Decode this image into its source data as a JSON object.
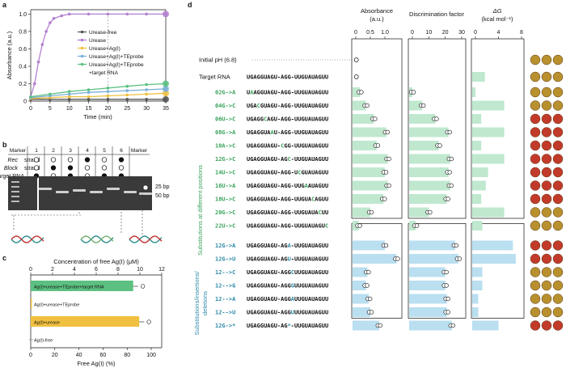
{
  "panels": {
    "a": "a",
    "b": "b",
    "c": "c",
    "d": "d"
  },
  "panel_a": {
    "chart_data": {
      "type": "line",
      "ylabel": "Absorbance (a.u.)",
      "xlabel": "Time (min)",
      "xlim": [
        0,
        35
      ],
      "ylim": [
        0,
        1.0
      ],
      "xticks": [
        "0",
        "5",
        "10",
        "15",
        "20",
        "25",
        "30",
        "35"
      ],
      "yticks": [
        "0",
        "0.2",
        "0.4",
        "0.6",
        "0.8",
        "1.0"
      ],
      "series": [
        {
          "name": "Urease-free",
          "color": "#555555",
          "x": [
            0,
            5,
            10,
            15,
            20,
            25,
            30,
            35
          ],
          "y": [
            0.02,
            0.02,
            0.02,
            0.02,
            0.02,
            0.02,
            0.02,
            0.02
          ]
        },
        {
          "name": "Urease",
          "color": "#b37fd0",
          "x": [
            0,
            1,
            2,
            3,
            4,
            5,
            6,
            8,
            10,
            15,
            20,
            25,
            30,
            35
          ],
          "y": [
            0.05,
            0.2,
            0.45,
            0.65,
            0.8,
            0.9,
            0.95,
            0.98,
            1.0,
            1.0,
            1.0,
            1.0,
            1.0,
            1.0
          ]
        },
        {
          "name": "Urease+Ag(I)",
          "color": "#f0c040",
          "x": [
            0,
            5,
            10,
            15,
            20,
            25,
            30,
            35
          ],
          "y": [
            0.03,
            0.04,
            0.05,
            0.05,
            0.06,
            0.07,
            0.08,
            0.09
          ]
        },
        {
          "name": "Urease+Ag(I)+TEprobe",
          "color": "#7ab0d8",
          "x": [
            0,
            5,
            10,
            15,
            20,
            25,
            30,
            35
          ],
          "y": [
            0.04,
            0.06,
            0.08,
            0.1,
            0.11,
            0.12,
            0.13,
            0.14
          ]
        },
        {
          "name": "Urease+Ag(I)+TEprobe\n+target RNA",
          "color": "#5cc080",
          "x": [
            0,
            5,
            10,
            15,
            20,
            25,
            30,
            35
          ],
          "y": [
            0.05,
            0.08,
            0.11,
            0.13,
            0.15,
            0.17,
            0.19,
            0.2
          ]
        }
      ],
      "legend": [
        "Urease-free",
        "Urease",
        "Urease+Ag(I)",
        "Urease+Ag(I)+TEprobe",
        "Urease+Ag(I)+TEprobe",
        "+target RNA"
      ]
    }
  },
  "panel_b": {
    "rows": [
      "Rec strand",
      "Block strand",
      "Target RNA"
    ],
    "rows_italic": [
      "Rec",
      "Block",
      ""
    ],
    "rows_rest": [
      " strand",
      " strand",
      "Target RNA"
    ],
    "cols": [
      "Marker",
      "1",
      "2",
      "3",
      "4",
      "5",
      "6",
      "Marker"
    ],
    "cells": [
      [
        "o",
        "o",
        "o",
        "f",
        "o",
        "f"
      ],
      [
        "o",
        "f",
        "f",
        "o",
        "o",
        "o"
      ],
      [
        "f",
        "o",
        "f",
        "o",
        "f",
        "f"
      ]
    ],
    "band_labels": [
      "25 bp",
      "50 bp"
    ]
  },
  "panel_c": {
    "chart_data": {
      "type": "bar",
      "top_axis_label": "Concentration of free Ag(I) (μM)",
      "top_ticks": [
        "0",
        "2",
        "4",
        "6",
        "8",
        "10",
        "12"
      ],
      "bottom_axis_label": "Free Ag(I) (%)",
      "bottom_ticks": [
        "0",
        "20",
        "40",
        "60",
        "80",
        "100"
      ],
      "categories": [
        "Ag(I)+urease+TEprobe+target RNA",
        "Ag(I)+urease+TEprobe",
        "Ag(I)+urease",
        "Ag(I)-free"
      ],
      "values": [
        85,
        1,
        90,
        0
      ],
      "colors": [
        "#5cc080",
        "#f0c040",
        "#f0c040",
        "#999999"
      ]
    }
  },
  "panel_d": {
    "headers": {
      "absorbance": "Absorbance",
      "absorbance_unit": "(a.u.)",
      "discrimination": "Discrimination factor",
      "dg": "ΔG",
      "dg_unit": "(kcal mol⁻¹)"
    },
    "abs_ticks": [
      "0",
      "0.5",
      "1.0"
    ],
    "disc_ticks": [
      "0",
      "10",
      "20",
      "30"
    ],
    "dg_ticks": [
      "0",
      "4",
      "8"
    ],
    "initial_ph": "Initial pH (6.8)",
    "target_label": "Target RNA",
    "target_seq": "UGAGGUAGU-AGG-UUGUAUAGUU",
    "group1_label": "Substitutions at different positions",
    "group2_label_1": "Substitutions/insertions/",
    "group2_label_2": "deletions",
    "rows": [
      {
        "label": "02G->A",
        "pre": "U",
        "mut": "A",
        "post": "AGGUAGU-AGG-UUGUAUAGUU",
        "abs": 0.15,
        "disc": 0,
        "dg": 0,
        "grp": 1
      },
      {
        "label": "04G->C",
        "pre": "UGA",
        "mut": "C",
        "post": "GUAGU-AGG-UUGUAUAGUU",
        "abs": 0.35,
        "disc": 6,
        "dg": 5.0,
        "grp": 1
      },
      {
        "label": "06U->C",
        "pre": "UGAGG",
        "mut": "C",
        "post": "AGU-AGG-UUGUAUAGUU",
        "abs": 0.62,
        "disc": 14,
        "dg": 1.0,
        "grp": 1
      },
      {
        "label": "08G->A",
        "pre": "UGAGGUA",
        "mut": "A",
        "post": "U-AGG-UUGUAUAGUU",
        "abs": 1.05,
        "disc": 22,
        "dg": 5.0,
        "grp": 1
      },
      {
        "label": "10A->C",
        "pre": "UGAGGUAGU-",
        "mut": "C",
        "post": "GG-UUGUAUAGUU",
        "abs": 0.72,
        "disc": 16,
        "dg": 1.0,
        "grp": 1
      },
      {
        "label": "12G->C",
        "pre": "UGAGGUAGU-AG",
        "mut": "C",
        "post": "-UUGUAUAGUU",
        "abs": 1.1,
        "disc": 23,
        "dg": 5.0,
        "grp": 1
      },
      {
        "label": "14U->C",
        "pre": "UGAGGUAGU-AGG-U",
        "mut": "C",
        "post": "GUAUAGUU",
        "abs": 1.0,
        "disc": 22,
        "dg": 2.2,
        "grp": 1
      },
      {
        "label": "16U->A",
        "pre": "UGAGGUAGU-AGG-UUG",
        "mut": "A",
        "post": "AUAGUU",
        "abs": 1.1,
        "disc": 23,
        "dg": 1.8,
        "grp": 1
      },
      {
        "label": "18U->C",
        "pre": "UGAGGUAGU-AGG-UUGUA",
        "mut": "C",
        "post": "AGUU",
        "abs": 0.95,
        "disc": 21,
        "dg": 1.0,
        "grp": 1
      },
      {
        "label": "20G->C",
        "pre": "UGAGGUAGU-AGG-UUGUAUA",
        "mut": "C",
        "post": "UU",
        "abs": 0.5,
        "disc": 10,
        "dg": 5.0,
        "grp": 1
      },
      {
        "label": "22U->C",
        "pre": "UGAGGUAGU-AGG-UUGUAUAGU",
        "mut": "C",
        "post": "",
        "abs": 0.1,
        "disc": 2,
        "dg": 1.2,
        "grp": 1
      },
      {
        "label": "12G->A",
        "pre": "UGAGGUAGU-AG",
        "mut": "A",
        "post": "-UUGUAUAGUU",
        "abs": 1.0,
        "disc": 26,
        "dg": 6.5,
        "grp": 2
      },
      {
        "label": "12G->U",
        "pre": "UGAGGUAGU-AG",
        "mut": "U",
        "post": "-UUGUAUAGUU",
        "abs": 1.4,
        "disc": 28,
        "dg": 7.0,
        "grp": 2
      },
      {
        "label": "12-->C",
        "pre": "UGAGGUAGU-AGG",
        "mut": "C",
        "post": "UUGUAUAGUU",
        "abs": 0.4,
        "disc": 20,
        "dg": 1.2,
        "grp": 2
      },
      {
        "label": "12-->G",
        "pre": "UGAGGUAGU-AGG",
        "mut": "G",
        "post": "UUGUAUAGUU",
        "abs": 0.35,
        "disc": 20,
        "dg": 1.2,
        "grp": 2
      },
      {
        "label": "12-->A",
        "pre": "UGAGGUAGU-AGG",
        "mut": "A",
        "post": "UUGUAUAGUU",
        "abs": 0.45,
        "disc": 21,
        "dg": 0.5,
        "grp": 2
      },
      {
        "label": "12-->U",
        "pre": "UGAGGUAGU-AGG",
        "mut": "U",
        "post": "UUGUAUAGUU",
        "abs": 0.5,
        "disc": 21,
        "dg": 0.5,
        "grp": 2
      },
      {
        "label": "12G->*",
        "pre": "UGAGGUAGU-AG",
        "mut": "*",
        "post": "-UUGUAUAGUU",
        "abs": 0.8,
        "disc": 24,
        "dg": 4.0,
        "grp": 2
      }
    ],
    "target_abs": 0.02,
    "target_dg": 1.5,
    "initial_abs": 0.02
  }
}
